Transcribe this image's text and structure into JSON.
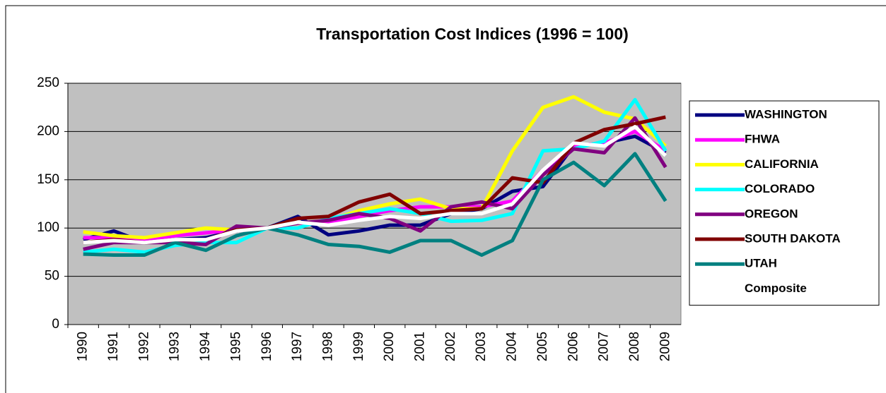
{
  "chart_data": {
    "type": "line",
    "title": "Transportation Cost Indices (1996 = 100)",
    "categories": [
      "1990",
      "1991",
      "1992",
      "1993",
      "1994",
      "1995",
      "1996",
      "1997",
      "1998",
      "1999",
      "2000",
      "2001",
      "2002",
      "2003",
      "2004",
      "2005",
      "2006",
      "2007",
      "2008",
      "2009"
    ],
    "series": [
      {
        "name": "WASHINGTON",
        "color": "#000080",
        "values": [
          88,
          97,
          85,
          88,
          90,
          97,
          100,
          112,
          93,
          97,
          103,
          103,
          115,
          120,
          138,
          143,
          185,
          188,
          195,
          178
        ]
      },
      {
        "name": "FHWA",
        "color": "#ff00ff",
        "values": [
          90,
          90,
          88,
          92,
          95,
          98,
          100,
          105,
          105,
          112,
          118,
          122,
          122,
          122,
          128,
          160,
          185,
          188,
          200,
          180
        ]
      },
      {
        "name": "CALIFORNIA",
        "color": "#ffff00",
        "values": [
          96,
          92,
          90,
          95,
          100,
          98,
          100,
          105,
          108,
          118,
          125,
          130,
          120,
          120,
          180,
          225,
          236,
          220,
          213,
          185
        ]
      },
      {
        "name": "COLORADO",
        "color": "#00ffff",
        "values": [
          75,
          78,
          75,
          82,
          85,
          85,
          100,
          100,
          110,
          115,
          120,
          115,
          107,
          108,
          115,
          180,
          182,
          190,
          233,
          180
        ]
      },
      {
        "name": "OREGON",
        "color": "#800080",
        "values": [
          78,
          85,
          85,
          85,
          83,
          102,
          100,
          105,
          108,
          115,
          110,
          97,
          122,
          127,
          120,
          155,
          182,
          178,
          214,
          163
        ]
      },
      {
        "name": "SOUTH DAKOTA",
        "color": "#800000",
        "values": [
          85,
          88,
          85,
          88,
          88,
          98,
          100,
          110,
          112,
          127,
          135,
          115,
          118,
          120,
          152,
          147,
          188,
          202,
          208,
          215
        ]
      },
      {
        "name": "UTAH",
        "color": "#008080",
        "values": [
          73,
          72,
          72,
          85,
          77,
          92,
          100,
          93,
          83,
          81,
          75,
          87,
          87,
          72,
          87,
          150,
          168,
          144,
          177,
          128
        ]
      },
      {
        "name": "Composite",
        "color": "#ffffff",
        "values": [
          85,
          87,
          85,
          88,
          88,
          97,
          100,
          106,
          103,
          108,
          112,
          110,
          115,
          115,
          125,
          160,
          188,
          185,
          205,
          175
        ]
      }
    ],
    "ylim": [
      0,
      250
    ],
    "yticks": [
      0,
      50,
      100,
      150,
      200,
      250
    ],
    "grid": true,
    "legend": "right",
    "plot_background": "#c0c0c0"
  }
}
